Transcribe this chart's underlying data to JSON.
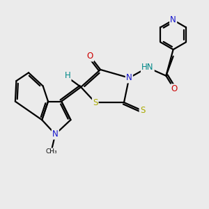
{
  "bg_color": "#ebebeb",
  "atom_colors": {
    "C": "#000000",
    "N": "#1414cc",
    "O": "#cc0000",
    "S": "#aaaa00",
    "H": "#008888"
  },
  "bond_color": "#000000",
  "bond_width": 1.6,
  "font_size_atom": 8.5,
  "font_size_small": 7.0
}
